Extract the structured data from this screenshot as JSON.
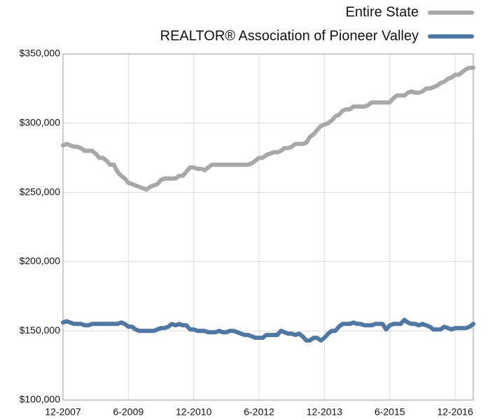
{
  "chart_data": {
    "type": "line",
    "legend": "top-right",
    "grid": true,
    "categories": [
      "12-2007",
      null,
      null,
      null,
      null,
      null,
      null,
      null,
      null,
      null,
      null,
      null,
      null,
      null,
      null,
      null,
      null,
      null,
      "6-2009",
      null,
      null,
      null,
      null,
      null,
      null,
      null,
      null,
      null,
      null,
      null,
      null,
      null,
      null,
      null,
      null,
      null,
      "12-2010",
      null,
      null,
      null,
      null,
      null,
      null,
      null,
      null,
      null,
      null,
      null,
      null,
      null,
      null,
      null,
      null,
      null,
      "6-2012",
      null,
      null,
      null,
      null,
      null,
      null,
      null,
      null,
      null,
      null,
      null,
      null,
      null,
      null,
      null,
      null,
      null,
      "12-2013",
      null,
      null,
      null,
      null,
      null,
      null,
      null,
      null,
      null,
      null,
      null,
      null,
      null,
      null,
      null,
      null,
      null,
      "6-2015",
      null,
      null,
      null,
      null,
      null,
      null,
      null,
      null,
      null,
      null,
      null,
      null,
      null,
      null,
      null,
      null,
      null,
      "12-2016",
      null,
      null,
      null,
      null,
      null
    ],
    "ylim": [
      100000,
      350000
    ],
    "yticks": [
      {
        "value": 100000,
        "label": "$100,000"
      },
      {
        "value": 150000,
        "label": "$150,000"
      },
      {
        "value": 200000,
        "label": "$200,000"
      },
      {
        "value": 250000,
        "label": "$250,000"
      },
      {
        "value": 300000,
        "label": "$300,000"
      },
      {
        "value": 350000,
        "label": "$350,000"
      }
    ],
    "series": [
      {
        "name": "Entire State",
        "color": "#a8a8a8",
        "values": [
          284000,
          285000,
          284000,
          283000,
          283000,
          282000,
          280000,
          280000,
          280000,
          278000,
          275000,
          275000,
          273000,
          270000,
          270000,
          265000,
          262000,
          260000,
          257000,
          256000,
          255000,
          254000,
          253000,
          252000,
          254000,
          255000,
          256000,
          259000,
          260000,
          260000,
          260000,
          260000,
          262000,
          262000,
          265000,
          268000,
          268000,
          267000,
          267000,
          266000,
          268000,
          270000,
          270000,
          270000,
          270000,
          270000,
          270000,
          270000,
          270000,
          270000,
          270000,
          270000,
          271000,
          273000,
          275000,
          275000,
          277000,
          278000,
          279000,
          279000,
          280000,
          282000,
          282000,
          283000,
          285000,
          285000,
          285000,
          286000,
          290000,
          292000,
          295000,
          298000,
          299000,
          300000,
          302000,
          305000,
          306000,
          309000,
          310000,
          310000,
          312000,
          312000,
          312000,
          312000,
          313000,
          315000,
          315000,
          315000,
          315000,
          315000,
          315000,
          318000,
          320000,
          320000,
          320000,
          322000,
          323000,
          322000,
          322000,
          323000,
          325000,
          325000,
          326000,
          327000,
          329000,
          330000,
          332000,
          333000,
          335000,
          335000,
          337000,
          339000,
          340000,
          340000
        ]
      },
      {
        "name": "REALTOR® Association of Pioneer Valley",
        "color": "#4e77a2",
        "values": [
          156000,
          157000,
          156000,
          155000,
          155000,
          155000,
          154000,
          154000,
          155000,
          155000,
          155000,
          155000,
          155000,
          155000,
          155000,
          155000,
          156000,
          155000,
          153000,
          153000,
          151000,
          150000,
          150000,
          150000,
          150000,
          150000,
          151000,
          152000,
          152000,
          153000,
          155000,
          154000,
          155000,
          154000,
          154000,
          151000,
          151000,
          150000,
          150000,
          150000,
          149000,
          149000,
          149000,
          150000,
          149000,
          149000,
          150000,
          150000,
          149000,
          148000,
          147000,
          147000,
          146000,
          145000,
          145000,
          145000,
          147000,
          147000,
          147000,
          147000,
          150000,
          149000,
          148000,
          148000,
          147000,
          148000,
          146000,
          143000,
          143000,
          145000,
          145000,
          143000,
          145000,
          148000,
          150000,
          150000,
          153000,
          155000,
          155000,
          155000,
          156000,
          155000,
          155000,
          154000,
          154000,
          154000,
          155000,
          155000,
          155000,
          151000,
          154000,
          155000,
          155000,
          155000,
          158000,
          156000,
          155000,
          155000,
          154000,
          155000,
          154000,
          153000,
          151000,
          151000,
          151000,
          153000,
          152000,
          151000,
          152000,
          152000,
          152000,
          152000,
          153000,
          155000
        ]
      }
    ]
  }
}
